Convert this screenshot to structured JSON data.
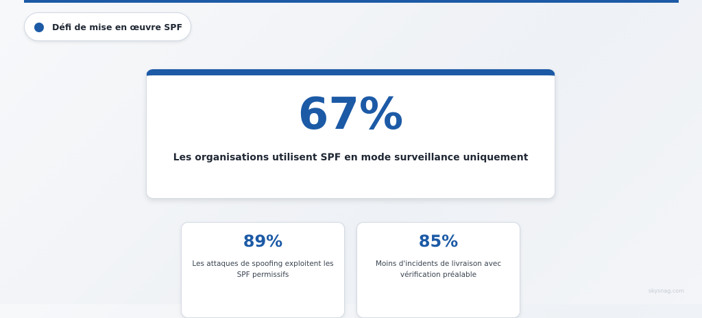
{
  "badge": {
    "label": "Défi de mise en œuvre SPF"
  },
  "hero": {
    "value": "67%",
    "description": "Les organisations utilisent SPF en mode surveillance uniquement"
  },
  "stats": [
    {
      "value": "89%",
      "description": "Les attaques de spoofing exploitent les SPF permissifs"
    },
    {
      "value": "85%",
      "description": "Moins d'incidents de livraison avec vérification préalable"
    }
  ],
  "watermark": "skysnag.com"
}
